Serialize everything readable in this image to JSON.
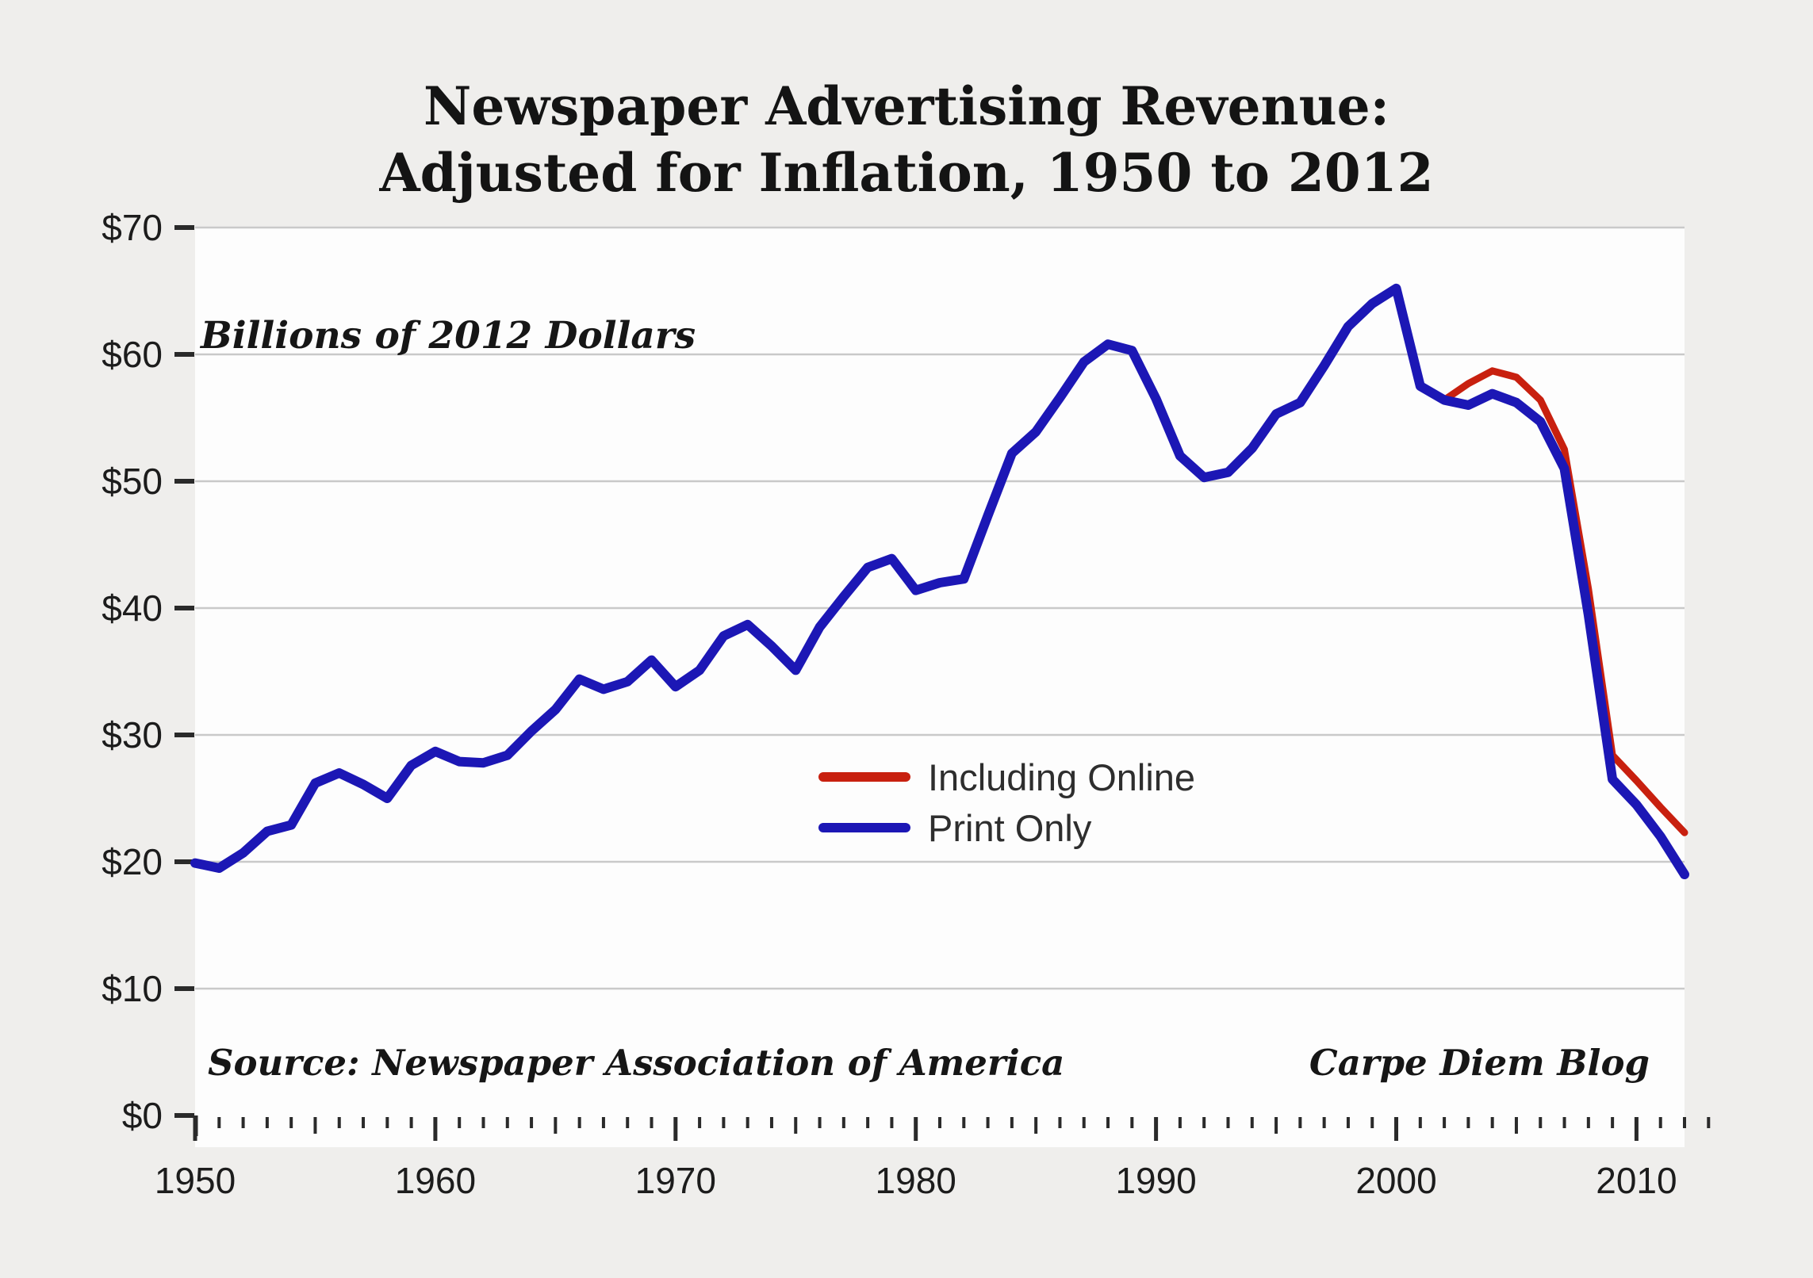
{
  "title": {
    "line1": "Newspaper Advertising Revenue:",
    "line2": "Adjusted for Inflation, 1950 to 2012"
  },
  "annotations": {
    "units_note": "Billions of 2012 Dollars",
    "source": "Source: Newspaper Association of America",
    "credit": "Carpe Diem Blog"
  },
  "legend": {
    "items": [
      {
        "label": "Including Online",
        "color": "#c8200f"
      },
      {
        "label": "Print Only",
        "color": "#1c17b5"
      }
    ]
  },
  "chart_data": {
    "type": "line",
    "title": "Newspaper Advertising Revenue: Adjusted for Inflation, 1950 to 2012",
    "xlabel": "",
    "ylabel": "Billions of 2012 Dollars",
    "x_start": 1950,
    "x_end": 2012,
    "ylim": [
      0,
      70
    ],
    "grid": "horizontal",
    "legend_position": "lower-center-right",
    "yaxis_ticks": [
      {
        "value": 0,
        "label": "$0"
      },
      {
        "value": 10,
        "label": "$10"
      },
      {
        "value": 20,
        "label": "$20"
      },
      {
        "value": 30,
        "label": "$30"
      },
      {
        "value": 40,
        "label": "$40"
      },
      {
        "value": 50,
        "label": "$50"
      },
      {
        "value": 60,
        "label": "$60"
      },
      {
        "value": 70,
        "label": "$70"
      }
    ],
    "xaxis_ticks": [
      1950,
      1960,
      1970,
      1980,
      1990,
      2000,
      2010
    ],
    "series": [
      {
        "name": "Including Online",
        "color": "#c8200f",
        "stroke_width": 9,
        "start_year": 2002,
        "values": [
          56.4,
          57.7,
          58.7,
          58.2,
          56.4,
          52.5,
          41.5,
          28.4,
          26.4,
          24.3,
          22.3
        ]
      },
      {
        "name": "Print Only",
        "color": "#1c17b5",
        "stroke_width": 12,
        "start_year": 1950,
        "values": [
          19.9,
          19.5,
          20.7,
          22.4,
          22.9,
          26.2,
          27.0,
          26.1,
          25.0,
          27.6,
          28.7,
          27.9,
          27.8,
          28.4,
          30.3,
          32.0,
          34.4,
          33.6,
          34.2,
          35.9,
          33.8,
          35.1,
          37.8,
          38.7,
          37.0,
          35.1,
          38.5,
          40.9,
          43.2,
          43.9,
          41.4,
          42.0,
          42.3,
          47.3,
          52.2,
          53.9,
          56.6,
          59.4,
          60.8,
          60.3,
          56.5,
          52.0,
          50.3,
          50.7,
          52.6,
          55.3,
          56.2,
          59.1,
          62.2,
          64.0,
          65.2,
          57.5,
          56.4,
          56.0,
          56.9,
          56.2,
          54.7,
          51.0,
          39.5,
          26.5,
          24.5,
          22.0,
          19.0
        ]
      }
    ]
  }
}
